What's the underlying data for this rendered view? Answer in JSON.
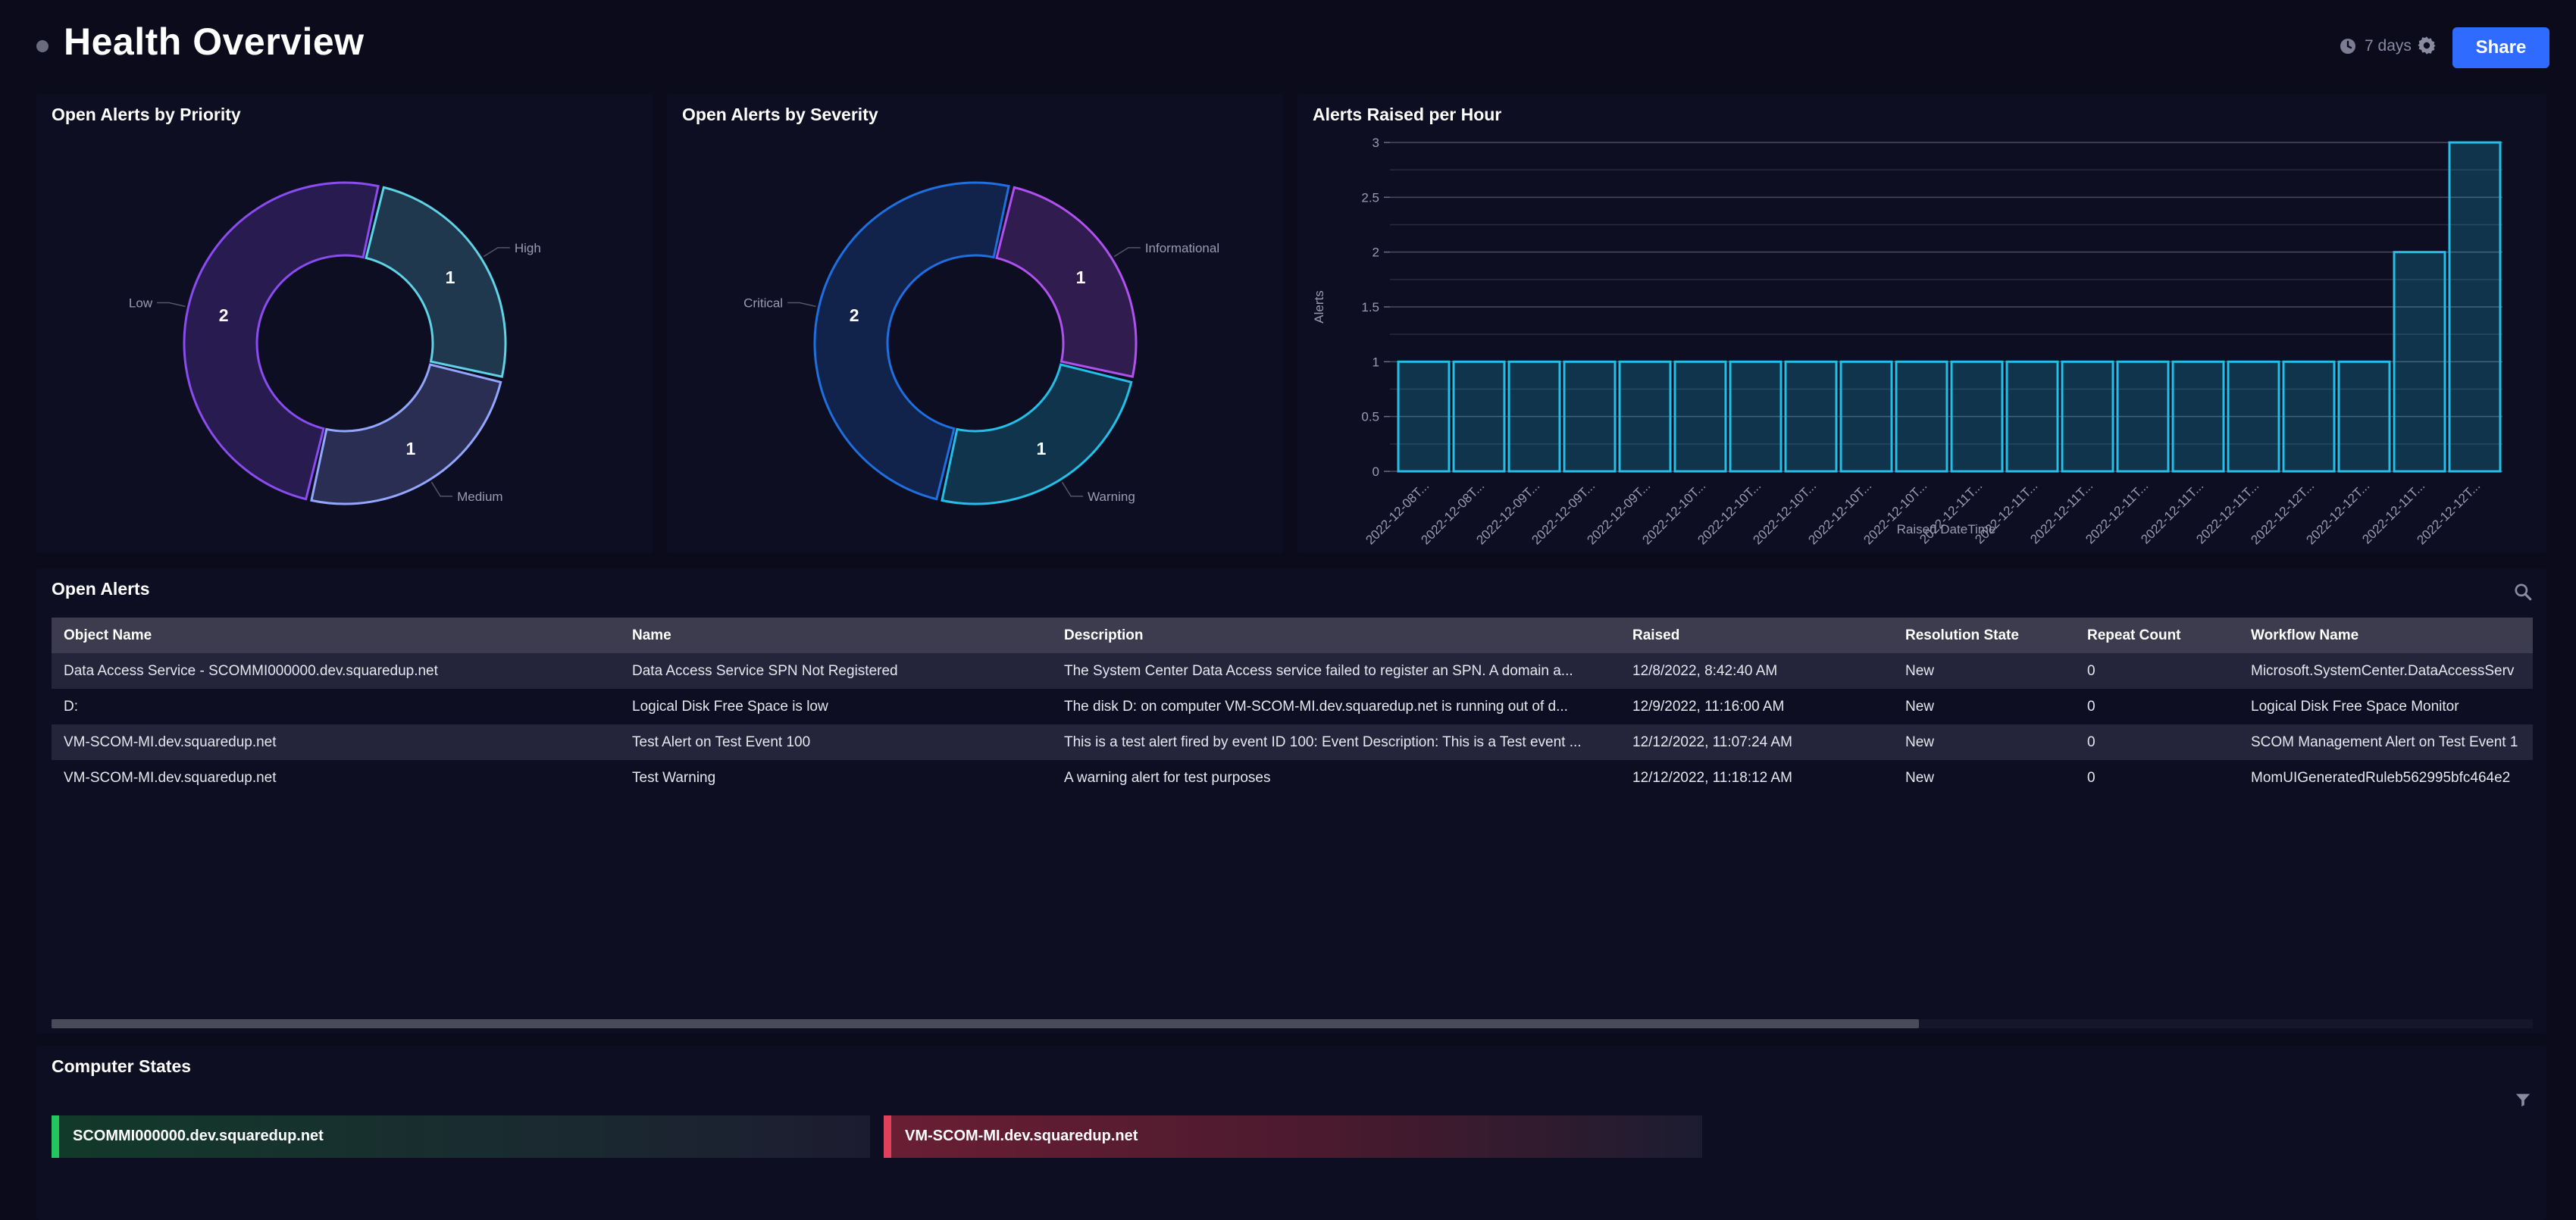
{
  "header": {
    "title": "Health Overview",
    "timeframe": "7 days",
    "share_label": "Share",
    "icons": [
      "status-dot",
      "clock-icon",
      "gear-icon"
    ]
  },
  "colors": {
    "background": "#0b0b1c",
    "panel": "#0e0e22",
    "accent": "#2f6bff",
    "teal": "#5fd3e6",
    "purple": "#8a4cf0",
    "healthy": "#22c55e",
    "unhealthy": "#e0405a"
  },
  "priority_panel": {
    "title": "Open Alerts by Priority",
    "chart_data": {
      "type": "pie",
      "donut": true,
      "title": "Open Alerts by Priority",
      "slices": [
        {
          "label": "High",
          "value": 1,
          "value_label": "1",
          "color": "#5fd3e6"
        },
        {
          "label": "Medium",
          "value": 1,
          "value_label": "1",
          "color": "#93a6ff"
        },
        {
          "label": "Low",
          "value": 2,
          "value_label": "2",
          "color": "#8a4cf0"
        }
      ]
    }
  },
  "severity_panel": {
    "title": "Open Alerts by Severity",
    "chart_data": {
      "type": "pie",
      "donut": true,
      "title": "Open Alerts by Severity",
      "slices": [
        {
          "label": "Informational",
          "value": 1,
          "value_label": "1",
          "color": "#b050f0"
        },
        {
          "label": "Warning",
          "value": 1,
          "value_label": "1",
          "color": "#22c0e8"
        },
        {
          "label": "Critical",
          "value": 2,
          "value_label": "2",
          "color": "#1e6fe0"
        }
      ]
    }
  },
  "hourly_panel": {
    "title": "Alerts Raised per Hour",
    "chart_data": {
      "type": "bar",
      "title": "Alerts Raised per Hour",
      "xlabel": "Raised DateTime",
      "ylabel": "Alerts",
      "ylim": [
        0,
        3
      ],
      "yticks": [
        "0",
        "0.5",
        "1",
        "1.5",
        "2",
        "2.5",
        "3"
      ],
      "categories": [
        "2022-12-08T...",
        "2022-12-08T...",
        "2022-12-09T...",
        "2022-12-09T...",
        "2022-12-09T...",
        "2022-12-10T...",
        "2022-12-10T...",
        "2022-12-10T...",
        "2022-12-10T...",
        "2022-12-10T...",
        "2022-12-11T...",
        "2022-12-11T...",
        "2022-12-11T...",
        "2022-12-11T...",
        "2022-12-11T...",
        "2022-12-11T...",
        "2022-12-12T...",
        "2022-12-12T...",
        "2022-12-11T...",
        "2022-12-12T..."
      ],
      "values": [
        1,
        1,
        1,
        1,
        1,
        1,
        1,
        1,
        1,
        1,
        1,
        1,
        1,
        1,
        1,
        1,
        1,
        1,
        2,
        3
      ],
      "grid": true
    }
  },
  "open_alerts": {
    "title": "Open Alerts",
    "columns": [
      "Object Name",
      "Name",
      "Description",
      "Raised",
      "Resolution State",
      "Repeat Count",
      "Workflow Name"
    ],
    "rows": [
      [
        "Data Access Service - SCOMMI000000.dev.squaredup.net",
        "Data Access Service SPN Not Registered",
        "The System Center Data Access service failed to register an SPN. A domain a...",
        "12/8/2022, 8:42:40 AM",
        "New",
        "0",
        "Microsoft.SystemCenter.DataAccessServ"
      ],
      [
        "D:",
        "Logical Disk Free Space is low",
        "The disk D: on computer VM-SCOM-MI.dev.squaredup.net is running out of d...",
        "12/9/2022, 11:16:00 AM",
        "New",
        "0",
        "Logical Disk Free Space Monitor"
      ],
      [
        "VM-SCOM-MI.dev.squaredup.net",
        "Test Alert on Test Event 100",
        "This is a test alert fired by event ID 100: Event Description: This is a Test event ...",
        "12/12/2022, 11:07:24 AM",
        "New",
        "0",
        "SCOM Management Alert on Test Event 1"
      ],
      [
        "VM-SCOM-MI.dev.squaredup.net",
        "Test Warning",
        "A warning alert for test purposes",
        "12/12/2022, 11:18:12 AM",
        "New",
        "0",
        "MomUIGeneratedRuleb562995bfc464e2"
      ]
    ]
  },
  "computer_states": {
    "title": "Computer States",
    "items": [
      {
        "name": "SCOMMI000000.dev.squaredup.net",
        "state": "healthy"
      },
      {
        "name": "VM-SCOM-MI.dev.squaredup.net",
        "state": "unhealthy"
      }
    ]
  }
}
